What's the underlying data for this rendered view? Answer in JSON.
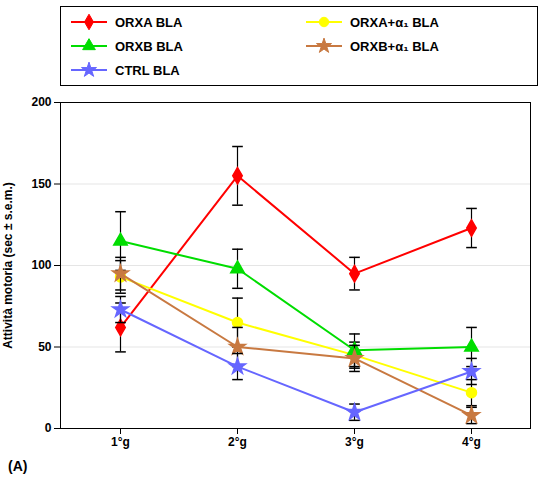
{
  "chart_data": {
    "type": "line",
    "categories": [
      "1°g",
      "2°g",
      "3°g",
      "4°g"
    ],
    "series": [
      {
        "name": "ORXA BLA",
        "color": "#ff0000",
        "marker": "diamond",
        "values": [
          62,
          155,
          95,
          123
        ],
        "yerr": [
          15,
          18,
          10,
          12
        ]
      },
      {
        "name": "ORXA+α₁ BLA",
        "color": "#ffff00",
        "marker": "circle",
        "values": [
          93,
          65,
          45,
          22
        ],
        "yerr": [
          10,
          15,
          8,
          8
        ]
      },
      {
        "name": "ORXB BLA",
        "color": "#00dd00",
        "marker": "triangle",
        "values": [
          115,
          98,
          48,
          50
        ],
        "yerr": [
          18,
          12,
          10,
          12
        ]
      },
      {
        "name": "ORXB+α₁ BLA",
        "color": "#c87941",
        "marker": "star",
        "values": [
          95,
          50,
          43,
          8
        ],
        "yerr": [
          10,
          12,
          8,
          5
        ]
      },
      {
        "name": "CTRL BLA",
        "color": "#6666ff",
        "marker": "star",
        "values": [
          73,
          38,
          10,
          35
        ],
        "yerr": [
          8,
          8,
          5,
          8
        ]
      }
    ],
    "ylabel": "Attività motoria (sec ± s.e.m.)",
    "ylim": [
      0,
      200
    ],
    "yticks": [
      0,
      50,
      100,
      150,
      200
    ],
    "grid": true,
    "legend": "top",
    "annotation": "(A)"
  }
}
